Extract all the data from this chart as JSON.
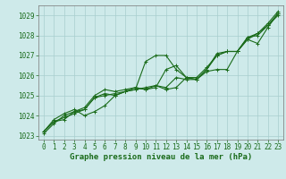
{
  "xlabel": "Graphe pression niveau de la mer (hPa)",
  "ylim": [
    1022.8,
    1029.5
  ],
  "xlim": [
    -0.5,
    23.5
  ],
  "yticks": [
    1023,
    1024,
    1025,
    1026,
    1027,
    1028,
    1029
  ],
  "xticks": [
    0,
    1,
    2,
    3,
    4,
    5,
    6,
    7,
    8,
    9,
    10,
    11,
    12,
    13,
    14,
    15,
    16,
    17,
    18,
    19,
    20,
    21,
    22,
    23
  ],
  "bg_color": "#ceeaea",
  "grid_color": "#a8cece",
  "line_color": "#1a6b1a",
  "lines": [
    [
      1023.2,
      1023.7,
      1023.8,
      1024.2,
      1024.3,
      1024.9,
      1025.1,
      1025.0,
      1025.2,
      1025.3,
      1026.7,
      1027.0,
      1027.0,
      1026.3,
      1025.9,
      1025.8,
      1026.3,
      1027.0,
      1027.2,
      1027.2,
      1027.8,
      1027.6,
      1028.4,
      1029.1
    ],
    [
      1023.1,
      1023.6,
      1024.0,
      1024.2,
      1024.4,
      1025.0,
      1025.3,
      1025.2,
      1025.3,
      1025.4,
      1025.3,
      1025.4,
      1026.3,
      1026.5,
      1025.9,
      1025.8,
      1026.3,
      1027.1,
      1027.2,
      1027.2,
      1027.9,
      1028.0,
      1028.5,
      1029.1
    ],
    [
      1023.2,
      1023.8,
      1024.1,
      1024.3,
      1024.0,
      1024.2,
      1024.5,
      1025.0,
      1025.2,
      1025.4,
      1025.3,
      1025.5,
      1025.3,
      1025.4,
      1025.9,
      1025.9,
      1026.4,
      1027.0,
      1027.2,
      1027.2,
      1027.9,
      1028.1,
      1028.6,
      1029.2
    ],
    [
      1023.2,
      1023.7,
      1023.9,
      1024.1,
      1024.3,
      1024.9,
      1025.0,
      1025.1,
      1025.2,
      1025.3,
      1025.4,
      1025.5,
      1025.4,
      1025.9,
      1025.8,
      1025.8,
      1026.2,
      1026.3,
      1026.3,
      1027.2,
      1027.8,
      1028.1,
      1028.5,
      1029.0
    ]
  ],
  "marker": "+",
  "linewidth": 0.8,
  "markersize": 3,
  "tick_fontsize": 5.5,
  "label_fontsize": 6.5
}
